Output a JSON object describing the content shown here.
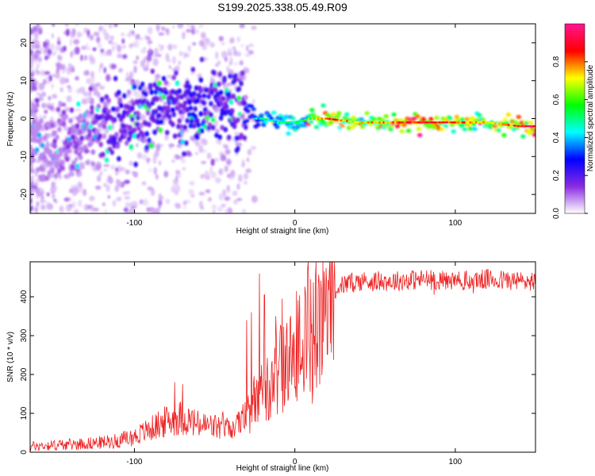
{
  "title": "S199.2025.338.05.49.R09",
  "chart_data": [
    {
      "type": "heatmap",
      "name": "spectrogram",
      "xlabel": "Height of straight line (km)",
      "ylabel": "Frequency (Hz)",
      "xlim": [
        -165,
        150
      ],
      "ylim": [
        -25,
        25
      ],
      "xticks": [
        -100,
        0,
        100
      ],
      "xtick_labels": [
        "-100",
        "0",
        "100"
      ],
      "yticks": [
        -20,
        -10,
        0,
        10,
        20
      ],
      "ytick_labels": [
        "-20",
        "-10",
        "0",
        "10",
        "20"
      ],
      "ridge_x": [
        -165,
        -150,
        -140,
        -130,
        -120,
        -110,
        -100,
        -90,
        -80,
        -70,
        -60,
        -50,
        -40,
        -35,
        -30,
        -25,
        -20,
        -10,
        0,
        10,
        20,
        40,
        60,
        80,
        100,
        120,
        140,
        148
      ],
      "ridge_freq": [
        -6,
        -6,
        -6,
        -5,
        -3,
        -2,
        0,
        2,
        3,
        2,
        3,
        4,
        5,
        3,
        1,
        0,
        0,
        -1,
        -1,
        0,
        0,
        -1,
        -1,
        -1,
        -1,
        -1,
        -2,
        -2
      ],
      "ridge_amplitude": [
        0.1,
        0.15,
        0.2,
        0.2,
        0.25,
        0.3,
        0.3,
        0.35,
        0.3,
        0.3,
        0.35,
        0.35,
        0.35,
        0.3,
        0.3,
        0.4,
        0.5,
        0.45,
        0.5,
        0.6,
        0.85,
        0.7,
        0.75,
        0.9,
        0.8,
        0.7,
        0.85,
        0.95
      ],
      "colorbar": {
        "label": "Normalized spectral amplitude",
        "range": [
          0,
          1
        ],
        "ticks": [
          0.0,
          0.2,
          0.4,
          0.6,
          0.8
        ],
        "tick_labels": [
          "0.0",
          "0.2",
          "0.4",
          "0.6",
          "0.8"
        ],
        "colors": [
          "#ffffff",
          "#8a2be2",
          "#0000ff",
          "#00ffff",
          "#00ff00",
          "#ffff00",
          "#ff0000",
          "#ff1493"
        ]
      }
    },
    {
      "type": "line",
      "name": "snr",
      "xlabel": "Height of straight line (km)",
      "ylabel": "SNR (10 * v/v)",
      "xlim": [
        -165,
        150
      ],
      "ylim": [
        0,
        490
      ],
      "xticks": [
        -100,
        0,
        100
      ],
      "xtick_labels": [
        "-100",
        "0",
        "100"
      ],
      "yticks": [
        0,
        100,
        200,
        300,
        400
      ],
      "ytick_labels": [
        "0",
        "100",
        "200",
        "300",
        "400"
      ],
      "color": "#ee2222",
      "trend_x": [
        -165,
        -140,
        -120,
        -110,
        -100,
        -90,
        -80,
        -70,
        -60,
        -50,
        -40,
        -30,
        -25,
        -20,
        -15,
        -10,
        -5,
        0,
        5,
        10,
        15,
        20,
        25,
        30,
        40,
        60,
        80,
        100,
        120,
        140,
        150
      ],
      "trend_y": [
        15,
        20,
        25,
        30,
        40,
        60,
        80,
        90,
        70,
        65,
        60,
        90,
        130,
        160,
        190,
        210,
        230,
        250,
        270,
        300,
        350,
        390,
        420,
        430,
        440,
        440,
        445,
        440,
        445,
        440,
        440
      ],
      "spikes": [
        {
          "x": -75,
          "y": 180
        },
        {
          "x": -70,
          "y": 175
        },
        {
          "x": -30,
          "y": 340
        },
        {
          "x": -27,
          "y": 360
        },
        {
          "x": -22,
          "y": 460
        },
        {
          "x": -19,
          "y": 405
        },
        {
          "x": -12,
          "y": 350
        },
        {
          "x": -8,
          "y": 395
        },
        {
          "x": 8,
          "y": 470
        },
        {
          "x": 10,
          "y": 445
        },
        {
          "x": 11,
          "y": 125
        }
      ]
    }
  ]
}
